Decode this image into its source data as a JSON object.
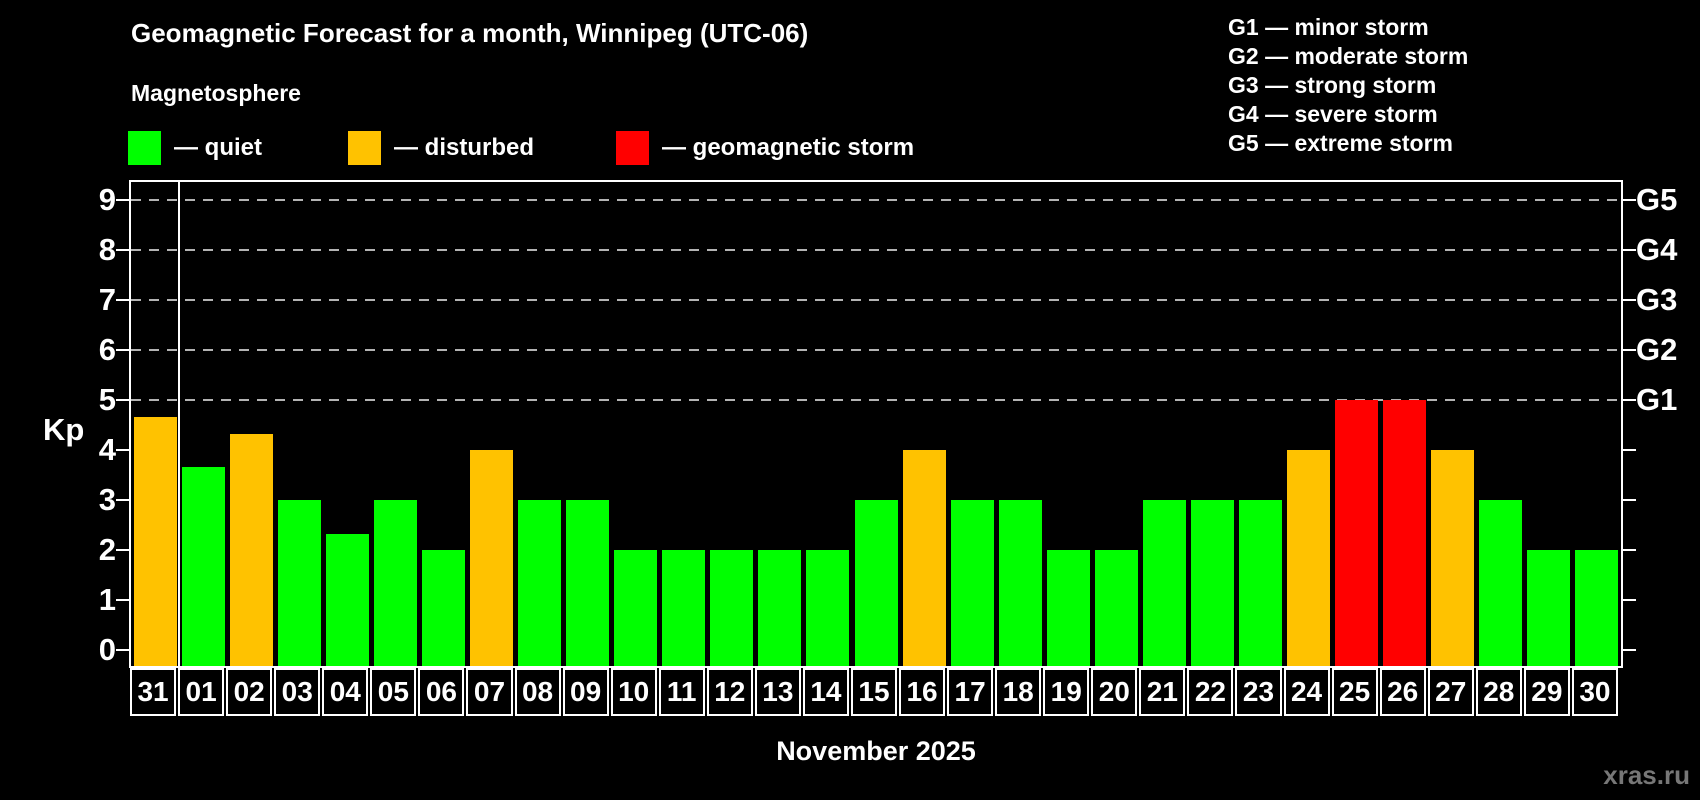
{
  "title": "Geomagnetic Forecast for a month, Winnipeg (UTC-06)",
  "subtitle": "Magnetosphere",
  "legend": {
    "items": [
      {
        "name": "quiet",
        "label": "— quiet",
        "color": "#00ff00"
      },
      {
        "name": "disturbed",
        "label": "— disturbed",
        "color": "#ffc200"
      },
      {
        "name": "storm",
        "label": "— geomagnetic storm",
        "color": "#ff0000"
      }
    ]
  },
  "g_legend": {
    "items": [
      "G1 — minor storm",
      "G2 — moderate storm",
      "G3 — strong storm",
      "G4 — severe storm",
      "G5 — extreme storm"
    ]
  },
  "y_axis": {
    "label": "Kp",
    "ticks": [
      0,
      1,
      2,
      3,
      4,
      5,
      6,
      7,
      8,
      9
    ]
  },
  "right_axis": {
    "labels": [
      {
        "kp": 5,
        "label": "G1"
      },
      {
        "kp": 6,
        "label": "G2"
      },
      {
        "kp": 7,
        "label": "G3"
      },
      {
        "kp": 8,
        "label": "G4"
      },
      {
        "kp": 9,
        "label": "G5"
      }
    ]
  },
  "x_axis": {
    "caption": "November 2025"
  },
  "watermark": "xras.ru",
  "chart_data": {
    "type": "bar",
    "title": "Geomagnetic Forecast for a month, Winnipeg (UTC-06)",
    "xlabel": "November 2025",
    "ylabel": "Kp",
    "ylim": [
      0,
      9.6
    ],
    "grid": "dashed horizontal gridlines at Kp 5-9 labeled G1-G5",
    "legend_position": "top",
    "gridlines_kp": [
      5,
      6,
      7,
      8,
      9
    ],
    "categories": [
      "31",
      "01",
      "02",
      "03",
      "04",
      "05",
      "06",
      "07",
      "08",
      "09",
      "10",
      "11",
      "12",
      "13",
      "14",
      "15",
      "16",
      "17",
      "18",
      "19",
      "20",
      "21",
      "22",
      "23",
      "24",
      "25",
      "26",
      "27",
      "28",
      "29",
      "30"
    ],
    "values": [
      4.67,
      3.67,
      4.33,
      3,
      2.33,
      3,
      2,
      4,
      3,
      3,
      2,
      2,
      2,
      2,
      2,
      3,
      4,
      3,
      3,
      2,
      2,
      3,
      3,
      3,
      4,
      5,
      5,
      4,
      3,
      2,
      2
    ],
    "statuses": [
      "disturbed",
      "quiet",
      "disturbed",
      "quiet",
      "quiet",
      "quiet",
      "quiet",
      "disturbed",
      "quiet",
      "quiet",
      "quiet",
      "quiet",
      "quiet",
      "quiet",
      "quiet",
      "quiet",
      "disturbed",
      "quiet",
      "quiet",
      "quiet",
      "quiet",
      "quiet",
      "quiet",
      "quiet",
      "disturbed",
      "storm",
      "storm",
      "disturbed",
      "quiet",
      "quiet",
      "quiet"
    ],
    "colors": {
      "quiet": "#00ff00",
      "disturbed": "#ffc200",
      "storm": "#ff0000"
    },
    "month_separator_after_category": "31"
  }
}
